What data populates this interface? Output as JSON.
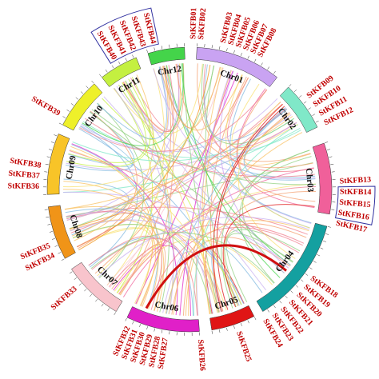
{
  "chromosomes": [
    {
      "label": "Chr01"
    },
    {
      "label": "Chr02"
    },
    {
      "label": "Chr03"
    },
    {
      "label": "Chr04"
    },
    {
      "label": "Chr05"
    },
    {
      "label": "Chr06"
    },
    {
      "label": "Chr07"
    },
    {
      "label": "Chr08"
    },
    {
      "label": "Chr09"
    },
    {
      "label": "Chr10"
    },
    {
      "label": "Chr11"
    },
    {
      "label": "Chr12"
    }
  ],
  "genes": [
    {
      "label": "StKFB01"
    },
    {
      "label": "StKFB02"
    },
    {
      "label": "StKFB03"
    },
    {
      "label": "StKFB04"
    },
    {
      "label": "StKFB05"
    },
    {
      "label": "StKFB06"
    },
    {
      "label": "StKFB07"
    },
    {
      "label": "StKFB08"
    },
    {
      "label": "StKFB09"
    },
    {
      "label": "StKFB10"
    },
    {
      "label": "StKFB11"
    },
    {
      "label": "StKFB12"
    },
    {
      "label": "StKFB13"
    },
    {
      "label": "StKFB14"
    },
    {
      "label": "StKFB15"
    },
    {
      "label": "StKFB16"
    },
    {
      "label": "StKFB17"
    },
    {
      "label": "StKFB18"
    },
    {
      "label": "StKFB19"
    },
    {
      "label": "StKFB20"
    },
    {
      "label": "StKFB21"
    },
    {
      "label": "StKFB22"
    },
    {
      "label": "StKFB23"
    },
    {
      "label": "StKFB24"
    },
    {
      "label": "StKFB25"
    },
    {
      "label": "StKFB26"
    },
    {
      "label": "StKFB27"
    },
    {
      "label": "StKFB28"
    },
    {
      "label": "StKFB29"
    },
    {
      "label": "StKFB30"
    },
    {
      "label": "StKFB31"
    },
    {
      "label": "StKFB32"
    },
    {
      "label": "StKFB33"
    },
    {
      "label": "StKFB34"
    },
    {
      "label": "StKFB35"
    },
    {
      "label": "StKFB36"
    },
    {
      "label": "StKFB37"
    },
    {
      "label": "StKFB38"
    },
    {
      "label": "StKFB39"
    },
    {
      "label": "StKFB40"
    },
    {
      "label": "StKFB41"
    },
    {
      "label": "StKFB42"
    },
    {
      "label": "StKFB43"
    },
    {
      "label": "StKFB44"
    }
  ]
}
